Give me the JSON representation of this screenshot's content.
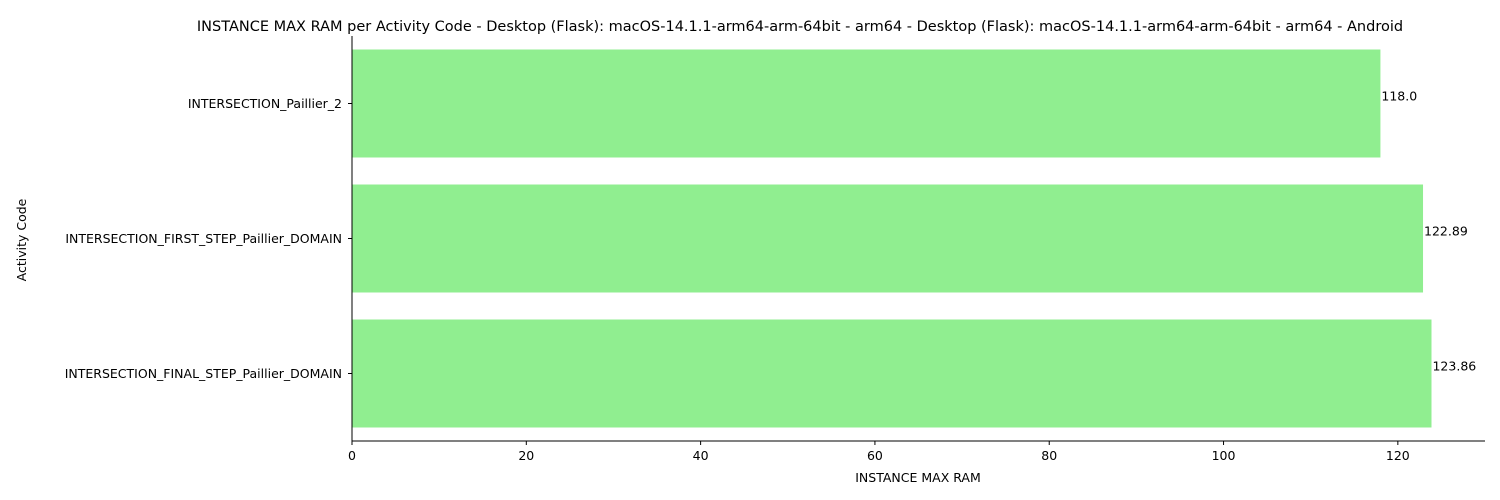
{
  "chart_data": {
    "type": "bar",
    "orientation": "horizontal",
    "title": "INSTANCE MAX RAM per Activity Code - Desktop (Flask): macOS-14.1.1-arm64-arm-64bit - arm64 - Desktop (Flask): macOS-14.1.1-arm64-arm-64bit - arm64 - Android",
    "xlabel": "INSTANCE MAX RAM",
    "ylabel": "Activity Code",
    "categories": [
      "INTERSECTION_Paillier_2",
      "INTERSECTION_FIRST_STEP_Paillier_DOMAIN",
      "INTERSECTION_FINAL_STEP_Paillier_DOMAIN"
    ],
    "values": [
      118.0,
      122.89,
      123.86
    ],
    "value_labels": [
      "118.0",
      "122.89",
      "123.86"
    ],
    "xlim": [
      0,
      130
    ],
    "xticks": [
      0,
      20,
      40,
      60,
      80,
      100,
      120
    ],
    "bar_color": "#90ee90",
    "grid": false,
    "legend": "none"
  }
}
